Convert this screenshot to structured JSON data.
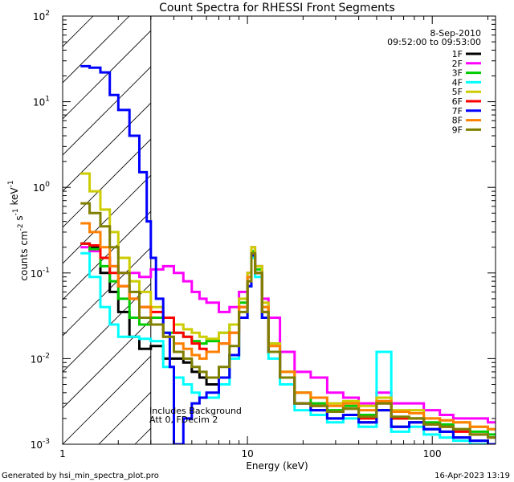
{
  "chart_data": {
    "type": "line",
    "title": "Count Spectra for RHESSI Front Segments",
    "xlabel": "Energy (keV)",
    "ylabel": "counts cm^-2 s^-1 keV^-1",
    "xscale": "log",
    "yscale": "log",
    "xlim": [
      1,
      220
    ],
    "ylim": [
      0.001,
      100
    ],
    "x_tick_labels": [
      "1",
      "10",
      "100"
    ],
    "y_tick_labels": [
      "10^-3",
      "10^-2",
      "10^-1",
      "10^0",
      "10^1",
      "10^2"
    ],
    "hatched_region_xmax_kev": 3,
    "legend": {
      "date": "8-Sep-2010",
      "time_range": "09:52:00 to 09:53:00",
      "position": "top-right"
    },
    "annotations": [
      "Includes Background",
      "Att 0, FDecim 2"
    ],
    "series": [
      {
        "name": "1F",
        "color": "#000000",
        "x": [
          1.25,
          1.4,
          1.6,
          1.8,
          2.0,
          2.3,
          2.6,
          3.0,
          3.5,
          4.0,
          4.5,
          5,
          5.5,
          6,
          7,
          8,
          9,
          10,
          10.5,
          11,
          12,
          13,
          15,
          18,
          22,
          27,
          33,
          40,
          50,
          60,
          75,
          90,
          110,
          130,
          160,
          200
        ],
        "y": [
          0.22,
          0.2,
          0.1,
          0.06,
          0.035,
          0.018,
          0.013,
          0.014,
          0.01,
          0.01,
          0.009,
          0.007,
          0.006,
          0.005,
          0.006,
          0.011,
          0.03,
          0.07,
          0.16,
          0.1,
          0.03,
          0.012,
          0.006,
          0.003,
          0.0025,
          0.002,
          0.0022,
          0.0018,
          0.0025,
          0.0016,
          0.0018,
          0.0015,
          0.0014,
          0.0012,
          0.0011,
          0.001
        ]
      },
      {
        "name": "2F",
        "color": "#ff00ff",
        "x": [
          1.25,
          1.4,
          1.6,
          1.8,
          2.0,
          2.3,
          2.6,
          3.0,
          3.5,
          4.0,
          4.5,
          5,
          5.5,
          6,
          7,
          8,
          9,
          10,
          10.5,
          11,
          12,
          13,
          15,
          18,
          22,
          27,
          33,
          40,
          50,
          60,
          75,
          90,
          110,
          130,
          160,
          200
        ],
        "y": [
          0.2,
          0.18,
          0.15,
          0.12,
          0.1,
          0.1,
          0.09,
          0.11,
          0.12,
          0.1,
          0.08,
          0.06,
          0.05,
          0.045,
          0.035,
          0.04,
          0.06,
          0.1,
          0.2,
          0.12,
          0.05,
          0.03,
          0.012,
          0.007,
          0.006,
          0.004,
          0.0035,
          0.003,
          0.004,
          0.003,
          0.003,
          0.0025,
          0.0022,
          0.002,
          0.002,
          0.0018
        ]
      },
      {
        "name": "3F",
        "color": "#00cc00",
        "x": [
          1.25,
          1.4,
          1.6,
          1.8,
          2.0,
          2.3,
          2.6,
          3.0,
          3.5,
          4.0,
          4.5,
          5,
          5.5,
          6,
          7,
          8,
          9,
          10,
          10.5,
          11,
          12,
          13,
          15,
          18,
          22,
          27,
          33,
          40,
          50,
          60,
          75,
          90,
          110,
          130,
          160,
          200
        ],
        "y": [
          0.22,
          0.19,
          0.12,
          0.08,
          0.05,
          0.03,
          0.025,
          0.03,
          0.02,
          0.02,
          0.018,
          0.016,
          0.015,
          0.016,
          0.02,
          0.025,
          0.045,
          0.09,
          0.18,
          0.11,
          0.04,
          0.015,
          0.007,
          0.004,
          0.003,
          0.0025,
          0.0028,
          0.0022,
          0.003,
          0.002,
          0.002,
          0.0018,
          0.0017,
          0.0015,
          0.0014,
          0.0013
        ]
      },
      {
        "name": "4F",
        "color": "#00ffff",
        "x": [
          1.25,
          1.4,
          1.6,
          1.8,
          2.0,
          2.3,
          2.6,
          3.0,
          3.5,
          4.0,
          4.5,
          5,
          5.5,
          6,
          7,
          8,
          9,
          10,
          10.5,
          11,
          12,
          13,
          15,
          18,
          22,
          27,
          33,
          40,
          50,
          60,
          75,
          90,
          110,
          130,
          160,
          200
        ],
        "y": [
          0.17,
          0.09,
          0.04,
          0.025,
          0.018,
          0.018,
          0.017,
          0.016,
          0.008,
          0.006,
          0.005,
          0.004,
          0.0035,
          0.0035,
          0.005,
          0.01,
          0.03,
          0.07,
          0.15,
          0.09,
          0.03,
          0.01,
          0.005,
          0.0025,
          0.0022,
          0.0018,
          0.002,
          0.0016,
          0.012,
          0.0014,
          0.0016,
          0.0013,
          0.0012,
          0.0011,
          0.001,
          0.001
        ]
      },
      {
        "name": "5F",
        "color": "#cccc00",
        "x": [
          1.25,
          1.4,
          1.6,
          1.8,
          2.0,
          2.3,
          2.6,
          3.0,
          3.5,
          4.0,
          4.5,
          5,
          5.5,
          6,
          7,
          8,
          9,
          10,
          10.5,
          11,
          12,
          13,
          15,
          18,
          22,
          27,
          33,
          40,
          50,
          60,
          75,
          90,
          110,
          130,
          160,
          200
        ],
        "y": [
          1.45,
          0.9,
          0.55,
          0.3,
          0.15,
          0.08,
          0.06,
          0.04,
          0.03,
          0.025,
          0.022,
          0.02,
          0.018,
          0.017,
          0.02,
          0.025,
          0.05,
          0.1,
          0.2,
          0.12,
          0.045,
          0.015,
          0.007,
          0.004,
          0.0035,
          0.003,
          0.0032,
          0.0028,
          0.0035,
          0.0025,
          0.0025,
          0.002,
          0.0019,
          0.0018,
          0.0016,
          0.0015
        ]
      },
      {
        "name": "6F",
        "color": "#ff0000",
        "x": [
          1.25,
          1.4,
          1.6,
          1.8,
          2.0,
          2.3,
          2.6,
          3.0,
          3.5,
          4.0,
          4.5,
          5,
          5.5,
          6,
          7,
          8,
          9,
          10,
          10.5,
          11,
          12,
          13,
          15,
          18,
          22,
          27,
          33,
          40,
          50,
          60,
          75,
          90,
          110,
          130,
          160,
          200
        ],
        "y": [
          0.22,
          0.21,
          0.15,
          0.1,
          0.07,
          0.05,
          0.04,
          0.035,
          0.03,
          0.02,
          0.018,
          0.015,
          0.013,
          0.012,
          0.015,
          0.02,
          0.04,
          0.08,
          0.16,
          0.1,
          0.035,
          0.012,
          0.006,
          0.003,
          0.0028,
          0.0024,
          0.0026,
          0.002,
          0.003,
          0.002,
          0.002,
          0.0017,
          0.0016,
          0.0014,
          0.0013,
          0.0012
        ]
      },
      {
        "name": "7F",
        "color": "#0000ff",
        "x": [
          1.25,
          1.4,
          1.6,
          1.8,
          2.0,
          2.3,
          2.6,
          2.85,
          3.0,
          3.2,
          3.5,
          3.8,
          4.0,
          4.5,
          5,
          5.5,
          6,
          7,
          8,
          9,
          10,
          10.5,
          11,
          12,
          13,
          15,
          18,
          22,
          27,
          33,
          40,
          50,
          60,
          75,
          90,
          110,
          130,
          160,
          200
        ],
        "y": [
          26,
          25,
          22,
          12,
          8,
          4,
          1.5,
          0.4,
          0.15,
          0.05,
          0.02,
          0.008,
          0.001,
          0.002,
          0.003,
          0.0035,
          0.004,
          0.006,
          0.011,
          0.03,
          0.07,
          0.16,
          0.1,
          0.03,
          0.012,
          0.006,
          0.003,
          0.0025,
          0.002,
          0.0022,
          0.0018,
          0.0025,
          0.0016,
          0.0018,
          0.0015,
          0.0014,
          0.0012,
          0.0011,
          0.001
        ]
      },
      {
        "name": "8F",
        "color": "#ff8000",
        "x": [
          1.25,
          1.4,
          1.6,
          1.8,
          2.0,
          2.3,
          2.6,
          3.0,
          3.5,
          4.0,
          4.5,
          5,
          5.5,
          6,
          7,
          8,
          9,
          10,
          10.5,
          11,
          12,
          13,
          15,
          18,
          22,
          27,
          33,
          40,
          50,
          60,
          75,
          90,
          110,
          130,
          160,
          200
        ],
        "y": [
          0.38,
          0.3,
          0.2,
          0.12,
          0.07,
          0.05,
          0.04,
          0.025,
          0.018,
          0.015,
          0.013,
          0.011,
          0.01,
          0.012,
          0.015,
          0.02,
          0.04,
          0.09,
          0.17,
          0.1,
          0.04,
          0.014,
          0.007,
          0.004,
          0.0035,
          0.0028,
          0.003,
          0.0025,
          0.0032,
          0.0024,
          0.0023,
          0.002,
          0.0019,
          0.0018,
          0.0016,
          0.0015
        ]
      },
      {
        "name": "9F",
        "color": "#808000",
        "x": [
          1.25,
          1.4,
          1.6,
          1.8,
          2.0,
          2.3,
          2.6,
          3.0,
          3.5,
          4.0,
          4.5,
          5,
          5.5,
          6,
          7,
          8,
          9,
          10,
          10.5,
          11,
          12,
          13,
          15,
          18,
          22,
          27,
          33,
          40,
          50,
          60,
          75,
          90,
          110,
          130,
          160,
          200
        ],
        "y": [
          0.65,
          0.5,
          0.35,
          0.2,
          0.1,
          0.06,
          0.03,
          0.025,
          0.018,
          0.012,
          0.01,
          0.008,
          0.007,
          0.006,
          0.008,
          0.014,
          0.035,
          0.08,
          0.17,
          0.1,
          0.035,
          0.012,
          0.006,
          0.003,
          0.0028,
          0.0024,
          0.0026,
          0.0021,
          0.003,
          0.0021,
          0.002,
          0.0017,
          0.0016,
          0.0015,
          0.0013,
          0.0012
        ]
      }
    ]
  },
  "footer": {
    "generated_by": "Generated by hsi_min_spectra_plot.pro",
    "timestamp": "16-Apr-2023 13:19"
  }
}
